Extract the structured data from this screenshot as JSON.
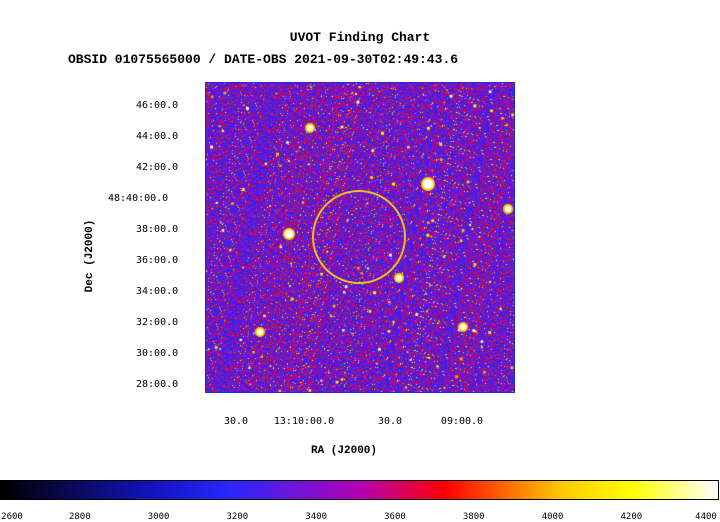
{
  "chart_data": {
    "type": "heatmap",
    "title": "UVOT Finding Chart",
    "subtitle": "OBSID 01075565000 / DATE-OBS 2021-09-30T02:49:43.6",
    "xlabel": "RA (J2000)",
    "ylabel": "Dec (J2000)",
    "x_ticks": [
      "30.0",
      "13:10:00.0",
      "30.0",
      "09:00.0"
    ],
    "y_ticks": [
      "46:00.0",
      "44:00.0",
      "42:00.0",
      "48:40:00.0",
      "38:00.0",
      "36:00.0",
      "34:00.0",
      "32:00.0",
      "30:00.0",
      "28:00.0"
    ],
    "colorbar": {
      "ticks": [
        2600,
        2800,
        3000,
        3200,
        3400,
        3600,
        3800,
        4000,
        4200,
        4400
      ],
      "range": [
        2600,
        4420
      ]
    },
    "marker": {
      "shape": "circle",
      "color": "#e8c020"
    }
  }
}
